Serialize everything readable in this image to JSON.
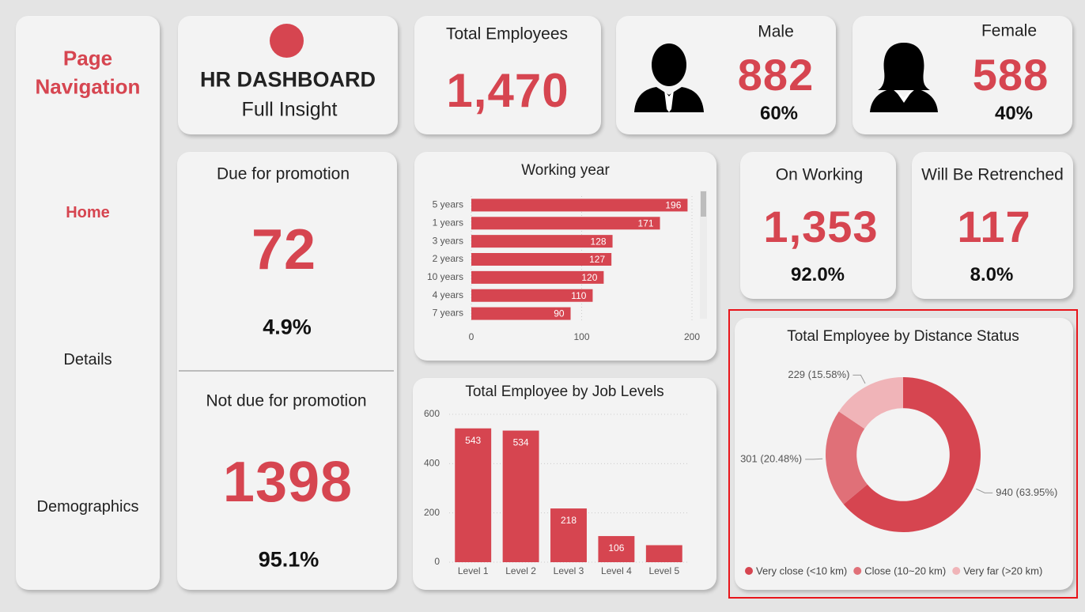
{
  "nav": {
    "title": "Page Navigation",
    "items": [
      "Home",
      "Details",
      "Demographics"
    ]
  },
  "header": {
    "title": "HR DASHBOARD",
    "subtitle": "Full Insight"
  },
  "total_employees": {
    "label": "Total Employees",
    "value": "1,470"
  },
  "male": {
    "label": "Male",
    "value": "882",
    "share": "60%"
  },
  "female": {
    "label": "Female",
    "value": "588",
    "share": "40%"
  },
  "promotion": {
    "due_label": "Due for promotion",
    "due_value": "72",
    "due_share": "4.9%",
    "not_due_label": "Not due for promotion",
    "not_due_value": "1398",
    "not_due_share": "95.1%"
  },
  "on_working": {
    "label": "On Working",
    "value": "1,353",
    "share": "92.0%"
  },
  "retrenched": {
    "label": "Will Be Retrenched",
    "value": "117",
    "share": "8.0%"
  },
  "chart_data": [
    {
      "type": "bar",
      "orientation": "horizontal",
      "title": "Working year",
      "categories": [
        "5 years",
        "1 years",
        "3 years",
        "2 years",
        "10 years",
        "4 years",
        "7 years"
      ],
      "values": [
        196,
        171,
        128,
        127,
        120,
        110,
        90
      ],
      "color": "#d64550",
      "xlim": [
        0,
        200
      ],
      "xticks": [
        0,
        100,
        200
      ],
      "grid": true
    },
    {
      "type": "bar",
      "title": "Total Employee by Job Levels",
      "categories": [
        "Level 1",
        "Level 2",
        "Level 3",
        "Level 4",
        "Level 5"
      ],
      "values": [
        543,
        534,
        218,
        106,
        69
      ],
      "color": "#d64550",
      "ylim": [
        0,
        600
      ],
      "yticks": [
        0,
        200,
        400,
        600
      ],
      "grid": true
    },
    {
      "type": "pie",
      "donut": true,
      "title": "Total Employee by Distance Status",
      "categories": [
        "Very close (<10 km)",
        "Close (10~20 km)",
        "Very far (>20 km)"
      ],
      "values": [
        940,
        301,
        229
      ],
      "value_labels": [
        "940 (63.95%)",
        "301 (20.48%)",
        "229 (15.58%)"
      ],
      "colors": [
        "#d64550",
        "#e07078",
        "#f0b4b8"
      ],
      "legend": "bottom"
    }
  ]
}
